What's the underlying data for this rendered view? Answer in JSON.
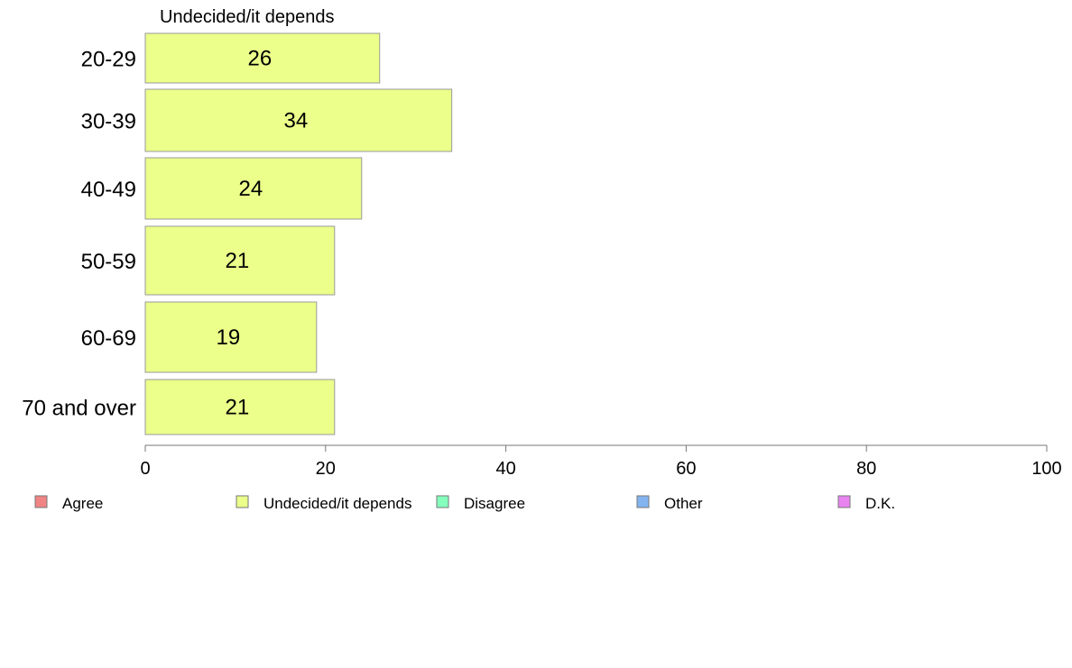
{
  "chart_data": {
    "type": "bar",
    "orientation": "horizontal",
    "title": "Undecided/it depends",
    "xlabel": "",
    "ylabel": "",
    "categories": [
      "20-29",
      "30-39",
      "40-49",
      "50-59",
      "60-69",
      "70 and over"
    ],
    "series": [
      {
        "name": "Undecided/it depends",
        "values": [
          26,
          34,
          24,
          21,
          19,
          21
        ],
        "color": "#ebff8a"
      }
    ],
    "xlim": [
      0,
      100
    ],
    "xticks": [
      0,
      20,
      40,
      60,
      80,
      100
    ],
    "grid": false,
    "legend_position": "bottom",
    "legend": [
      {
        "label": "Agree",
        "color": "#f08484"
      },
      {
        "label": "Undecided/it depends",
        "color": "#ebff8a"
      },
      {
        "label": "Disagree",
        "color": "#84ffbc"
      },
      {
        "label": "Other",
        "color": "#84b4f0"
      },
      {
        "label": "D.K.",
        "color": "#e884f0"
      }
    ]
  }
}
